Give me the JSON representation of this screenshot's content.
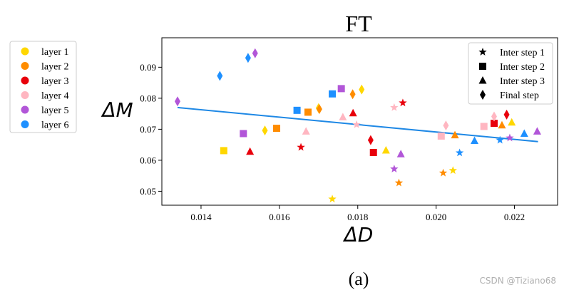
{
  "chart_data": {
    "type": "scatter",
    "title": "FT",
    "xlabel": "ΔD",
    "ylabel": "ΔM",
    "caption": "(a)",
    "watermark": "CSDN @Tiziano68",
    "xlim": [
      0.013,
      0.0231
    ],
    "ylim": [
      0.0455,
      0.0995
    ],
    "xticks": [
      0.014,
      0.016,
      0.018,
      0.02,
      0.022
    ],
    "xtick_labels": [
      "0.014",
      "0.016",
      "0.018",
      "0.020",
      "0.022"
    ],
    "yticks": [
      0.05,
      0.06,
      0.07,
      0.08,
      0.09
    ],
    "ytick_labels": [
      "0.05",
      "0.06",
      "0.07",
      "0.08",
      "0.09"
    ],
    "grid": false,
    "trend_line": {
      "x": [
        0.0134,
        0.0226
      ],
      "y": [
        0.077,
        0.066
      ],
      "color": "#1e88e5"
    },
    "color_legend": {
      "placement": "outside-left",
      "entries": [
        {
          "label": "layer 1",
          "color": "#ffd700"
        },
        {
          "label": "layer 2",
          "color": "#ff8c00"
        },
        {
          "label": "layer 3",
          "color": "#e8000b"
        },
        {
          "label": "layer 4",
          "color": "#ffb6c1"
        },
        {
          "label": "layer 5",
          "color": "#b256d8"
        },
        {
          "label": "layer 6",
          "color": "#1e90ff"
        }
      ]
    },
    "marker_legend": {
      "placement": "top-right",
      "entries": [
        {
          "label": "Inter step 1",
          "marker": "star"
        },
        {
          "label": "Inter step 2",
          "marker": "square"
        },
        {
          "label": "Inter step 3",
          "marker": "triangle"
        },
        {
          "label": "Final step",
          "marker": "diamond"
        }
      ]
    },
    "points": [
      {
        "layer": 1,
        "marker": "star",
        "x": 0.01735,
        "y": 0.0475
      },
      {
        "layer": 1,
        "marker": "star",
        "x": 0.02043,
        "y": 0.0567
      },
      {
        "layer": 1,
        "marker": "square",
        "x": 0.01458,
        "y": 0.0631
      },
      {
        "layer": 1,
        "marker": "triangle",
        "x": 0.01872,
        "y": 0.0632
      },
      {
        "layer": 1,
        "marker": "triangle",
        "x": 0.02193,
        "y": 0.0722
      },
      {
        "layer": 1,
        "marker": "diamond",
        "x": 0.01563,
        "y": 0.0696
      },
      {
        "layer": 1,
        "marker": "diamond",
        "x": 0.017,
        "y": 0.0768
      },
      {
        "layer": 1,
        "marker": "diamond",
        "x": 0.0181,
        "y": 0.0828
      },
      {
        "layer": 2,
        "marker": "star",
        "x": 0.01905,
        "y": 0.0527
      },
      {
        "layer": 2,
        "marker": "star",
        "x": 0.02018,
        "y": 0.0559
      },
      {
        "layer": 2,
        "marker": "square",
        "x": 0.01593,
        "y": 0.0703
      },
      {
        "layer": 2,
        "marker": "square",
        "x": 0.01673,
        "y": 0.0755
      },
      {
        "layer": 2,
        "marker": "triangle",
        "x": 0.02048,
        "y": 0.0681
      },
      {
        "layer": 2,
        "marker": "triangle",
        "x": 0.02168,
        "y": 0.0713
      },
      {
        "layer": 2,
        "marker": "diamond",
        "x": 0.01702,
        "y": 0.0765
      },
      {
        "layer": 2,
        "marker": "diamond",
        "x": 0.01787,
        "y": 0.0813
      },
      {
        "layer": 3,
        "marker": "star",
        "x": 0.01655,
        "y": 0.0642
      },
      {
        "layer": 3,
        "marker": "star",
        "x": 0.01915,
        "y": 0.0785
      },
      {
        "layer": 3,
        "marker": "square",
        "x": 0.0184,
        "y": 0.0625
      },
      {
        "layer": 3,
        "marker": "square",
        "x": 0.02148,
        "y": 0.0719
      },
      {
        "layer": 3,
        "marker": "triangle",
        "x": 0.01525,
        "y": 0.0628
      },
      {
        "layer": 3,
        "marker": "triangle",
        "x": 0.01788,
        "y": 0.0752
      },
      {
        "layer": 3,
        "marker": "diamond",
        "x": 0.01833,
        "y": 0.0665
      },
      {
        "layer": 3,
        "marker": "diamond",
        "x": 0.0218,
        "y": 0.0747
      },
      {
        "layer": 4,
        "marker": "star",
        "x": 0.01797,
        "y": 0.0715
      },
      {
        "layer": 4,
        "marker": "star",
        "x": 0.01893,
        "y": 0.077
      },
      {
        "layer": 4,
        "marker": "square",
        "x": 0.02013,
        "y": 0.0678
      },
      {
        "layer": 4,
        "marker": "square",
        "x": 0.02122,
        "y": 0.0709
      },
      {
        "layer": 4,
        "marker": "triangle",
        "x": 0.01668,
        "y": 0.0693
      },
      {
        "layer": 4,
        "marker": "triangle",
        "x": 0.01762,
        "y": 0.0739
      },
      {
        "layer": 4,
        "marker": "diamond",
        "x": 0.02025,
        "y": 0.0712
      },
      {
        "layer": 4,
        "marker": "diamond",
        "x": 0.02148,
        "y": 0.0741
      },
      {
        "layer": 5,
        "marker": "star",
        "x": 0.01893,
        "y": 0.0572
      },
      {
        "layer": 5,
        "marker": "star",
        "x": 0.02188,
        "y": 0.0672
      },
      {
        "layer": 5,
        "marker": "square",
        "x": 0.01508,
        "y": 0.0686
      },
      {
        "layer": 5,
        "marker": "square",
        "x": 0.01758,
        "y": 0.0831
      },
      {
        "layer": 5,
        "marker": "triangle",
        "x": 0.0191,
        "y": 0.062
      },
      {
        "layer": 5,
        "marker": "triangle",
        "x": 0.02258,
        "y": 0.0693
      },
      {
        "layer": 5,
        "marker": "diamond",
        "x": 0.0134,
        "y": 0.079
      },
      {
        "layer": 5,
        "marker": "diamond",
        "x": 0.01538,
        "y": 0.0945
      },
      {
        "layer": 6,
        "marker": "star",
        "x": 0.0206,
        "y": 0.0624
      },
      {
        "layer": 6,
        "marker": "star",
        "x": 0.02163,
        "y": 0.0665
      },
      {
        "layer": 6,
        "marker": "square",
        "x": 0.01645,
        "y": 0.0761
      },
      {
        "layer": 6,
        "marker": "square",
        "x": 0.01735,
        "y": 0.0814
      },
      {
        "layer": 6,
        "marker": "triangle",
        "x": 0.02098,
        "y": 0.0663
      },
      {
        "layer": 6,
        "marker": "triangle",
        "x": 0.02225,
        "y": 0.0686
      },
      {
        "layer": 6,
        "marker": "diamond",
        "x": 0.01448,
        "y": 0.0872
      },
      {
        "layer": 6,
        "marker": "diamond",
        "x": 0.0152,
        "y": 0.093
      }
    ]
  }
}
